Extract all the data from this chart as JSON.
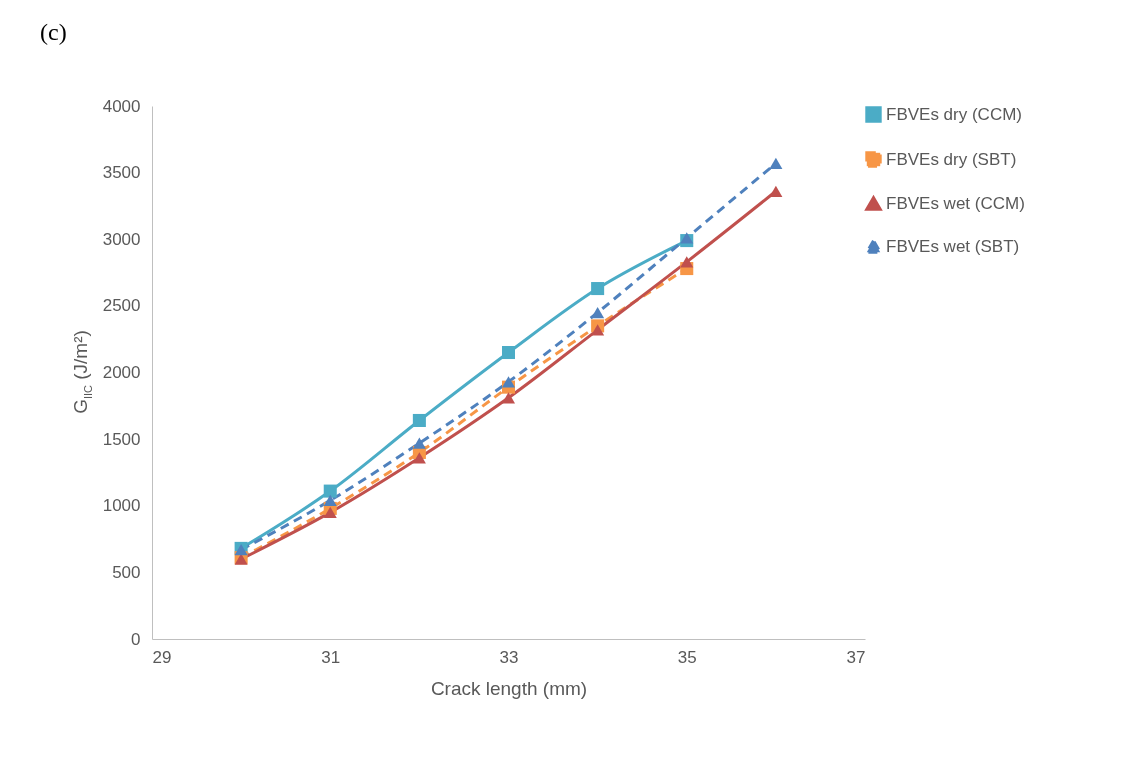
{
  "chart_data": {
    "type": "line",
    "title": "(c)",
    "xlabel": "Crack length (mm)",
    "ylabel": "G$_{IIC}$  (J/m²)",
    "xlim": [
      29,
      37
    ],
    "xticks": [
      29,
      31,
      33,
      35,
      37
    ],
    "ylim": [
      0,
      4000
    ],
    "yticks": [
      0,
      500,
      1000,
      1500,
      2000,
      2500,
      3000,
      3500,
      4000
    ],
    "grid": false,
    "legend": "right",
    "series": [
      {
        "name": "FBVEs dry (CCM)",
        "color": "#4bacc6",
        "marker": "square",
        "line_style": "solid",
        "x": [
          30,
          31,
          32,
          33,
          34,
          35
        ],
        "values": [
          680,
          1110,
          1640,
          2150,
          2630,
          2990
        ]
      },
      {
        "name": "FBVEs dry (SBT)",
        "color": "#f79646",
        "marker": "square",
        "line_style": "dashed",
        "x": [
          30,
          31,
          32,
          33,
          34,
          35
        ],
        "values": [
          610,
          980,
          1400,
          1890,
          2350,
          2780
        ]
      },
      {
        "name": "FBVEs wet (CCM)",
        "color": "#c0504d",
        "marker": "triangle",
        "line_style": "solid",
        "x": [
          30,
          31,
          32,
          33,
          34,
          35,
          36
        ],
        "values": [
          600,
          950,
          1360,
          1810,
          2320,
          2830,
          3360
        ]
      },
      {
        "name": "FBVEs wet (SBT)",
        "color": "#4f81bd",
        "marker": "triangle",
        "line_style": "dashed",
        "x": [
          30,
          31,
          32,
          33,
          34,
          35,
          36
        ],
        "values": [
          670,
          1040,
          1470,
          1930,
          2450,
          3010,
          3570
        ]
      }
    ]
  }
}
